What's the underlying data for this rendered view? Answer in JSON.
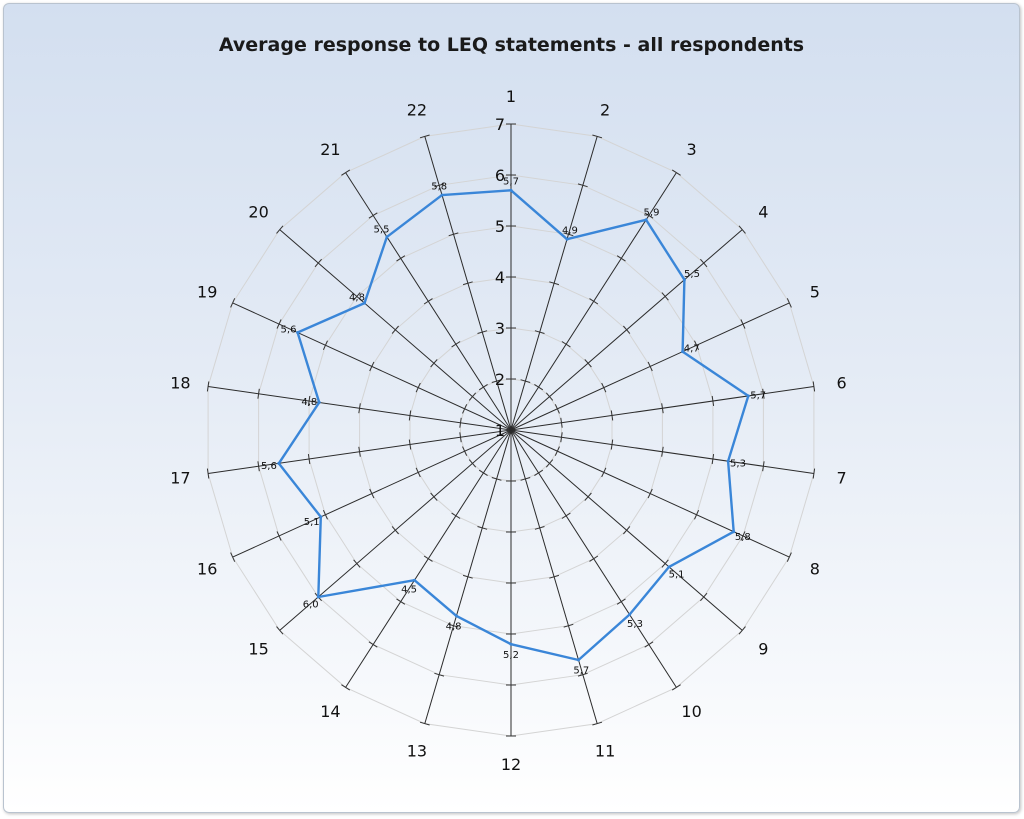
{
  "chart_data": {
    "type": "radar",
    "title": "Average response to LEQ statements - all respondents",
    "categories": [
      "1",
      "2",
      "3",
      "4",
      "5",
      "6",
      "7",
      "8",
      "9",
      "10",
      "11",
      "12",
      "13",
      "14",
      "15",
      "16",
      "17",
      "18",
      "19",
      "20",
      "21",
      "22"
    ],
    "series": [
      {
        "values": [
          5.7,
          4.9,
          5.9,
          5.5,
          4.7,
          5.7,
          5.3,
          5.8,
          5.1,
          5.3,
          5.7,
          5.2,
          4.8,
          4.5,
          6.0,
          5.1,
          5.6,
          4.8,
          5.6,
          4.8,
          5.5,
          5.8
        ],
        "value_labels": [
          "5,7",
          "4,9",
          "5,9",
          "5,5",
          "4,7",
          "5,7",
          "5,3",
          "5,8",
          "5,1",
          "5,3",
          "5,7",
          "5,2",
          "4,8",
          "4,5",
          "6,0",
          "5,1",
          "5,6",
          "4,8",
          "5,6",
          "4,8",
          "5,5",
          "5,8"
        ],
        "color": "#3a86d8"
      }
    ],
    "rlim": [
      1,
      7
    ],
    "ticks": [
      1,
      2,
      3,
      4,
      5,
      6,
      7
    ],
    "tick_labels": [
      "1",
      "2",
      "3",
      "4",
      "5",
      "6",
      "7"
    ],
    "grid": true,
    "legend": "none"
  }
}
